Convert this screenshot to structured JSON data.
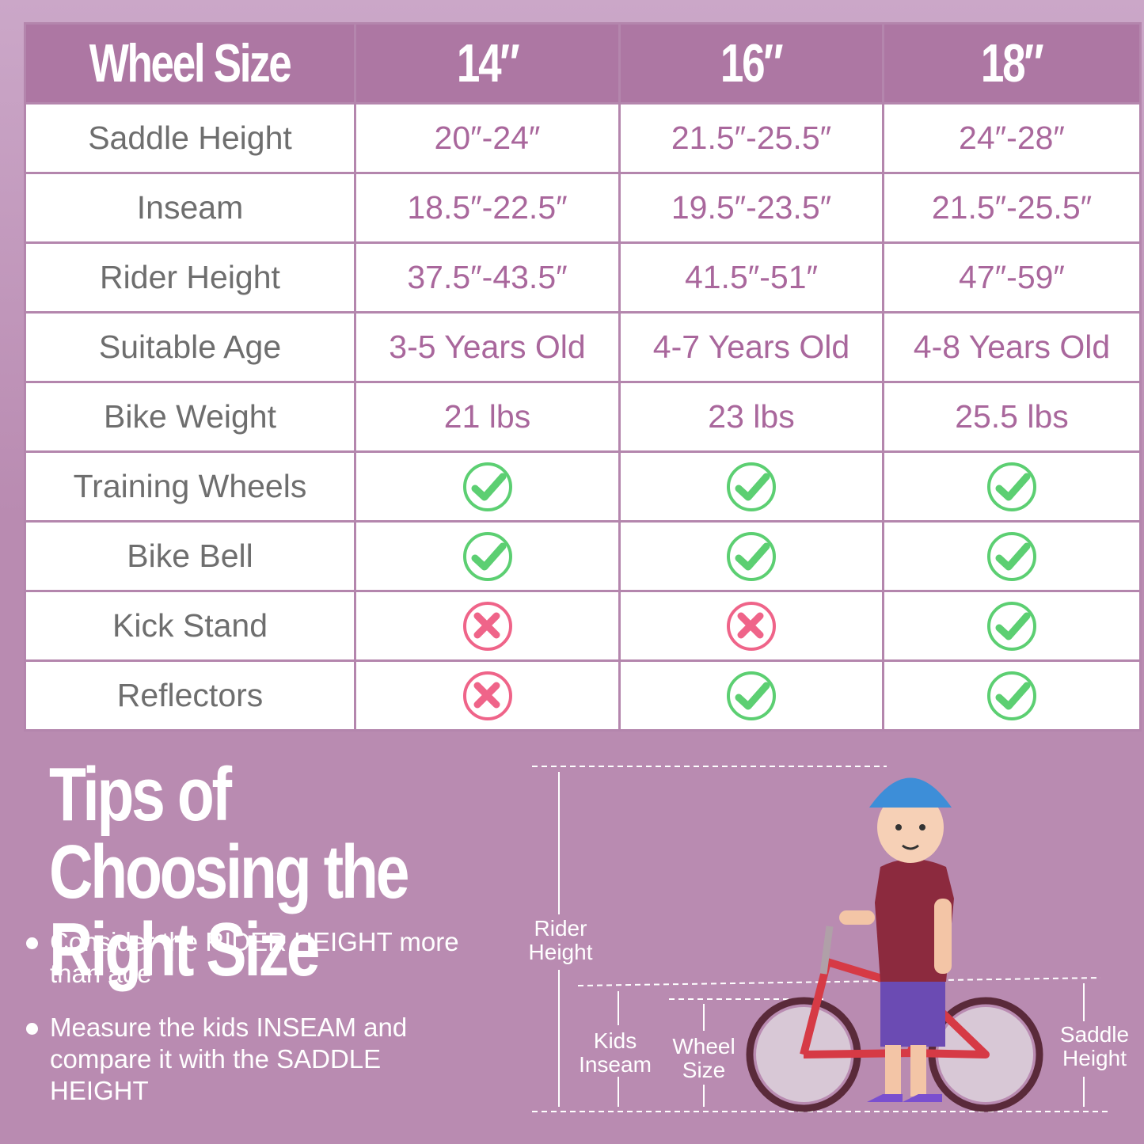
{
  "table": {
    "header": [
      "Wheel Size",
      "14″",
      "16″",
      "18″"
    ],
    "rows": [
      [
        "Saddle Height",
        "20″-24″",
        "21.5″-25.5″",
        "24″-28″"
      ],
      [
        "Inseam",
        "18.5″-22.5″",
        "19.5″-23.5″",
        "21.5″-25.5″"
      ],
      [
        "Rider Height",
        "37.5″-43.5″",
        "41.5″-51″",
        "47″-59″"
      ],
      [
        "Suitable Age",
        "3-5 Years Old",
        "4-7 Years Old",
        "4-8 Years Old"
      ],
      [
        "Bike Weight",
        "21 lbs",
        "23 lbs",
        "25.5 lbs"
      ],
      [
        "Training Wheels",
        true,
        true,
        true
      ],
      [
        "Bike Bell",
        true,
        true,
        true
      ],
      [
        "Kick Stand",
        false,
        false,
        true
      ],
      [
        "Reflectors",
        false,
        true,
        true
      ]
    ]
  },
  "tips": {
    "title": "Tips of Choosing the Right Size",
    "bullets": [
      "Consider the RIDER HEIGHT more than age",
      "Measure the kids INSEAM and compare it with the SADDLE HEIGHT"
    ]
  },
  "diagram": {
    "labels": [
      "Rider Height",
      "Kids Inseam",
      "Wheel Size",
      "Saddle Height"
    ]
  }
}
